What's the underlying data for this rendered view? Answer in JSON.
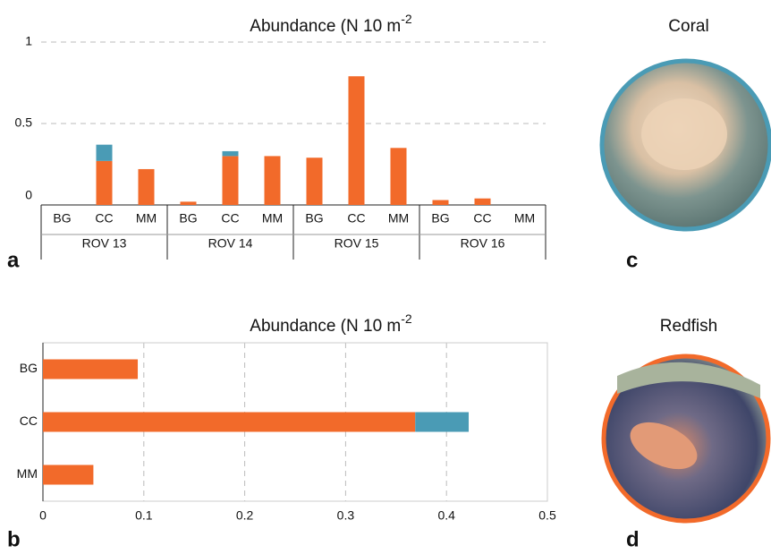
{
  "chart_data": [
    {
      "type": "bar",
      "panel": "a",
      "title": "Abundance (N 10 m",
      "title_sup": "-2",
      "categories": [
        "BG",
        "CC",
        "MM",
        "BG",
        "CC",
        "MM",
        "BG",
        "CC",
        "MM",
        "BG",
        "CC",
        "MM"
      ],
      "groups": [
        "ROV 13",
        "ROV 14",
        "ROV 15",
        "ROV 16"
      ],
      "series": [
        {
          "color": "#f26a2a",
          "values": [
            0,
            0.27,
            0.22,
            0.02,
            0.3,
            0.3,
            0.29,
            0.79,
            0.35,
            0.03,
            0.04,
            0
          ]
        },
        {
          "color": "#4a9bb5",
          "values": [
            0,
            0.1,
            0,
            0,
            0.03,
            0,
            0,
            0,
            0,
            0,
            0,
            0
          ]
        }
      ],
      "ylim": [
        0,
        1
      ],
      "yticks": [
        0,
        0.5,
        1
      ],
      "grid": true
    },
    {
      "type": "barh",
      "panel": "b",
      "title": "Abundance (N 10 m",
      "title_sup": "-2",
      "categories": [
        "BG",
        "CC",
        "MM"
      ],
      "series": [
        {
          "color": "#f26a2a",
          "values": [
            0.094,
            0.369,
            0.05
          ]
        },
        {
          "color": "#4a9bb5",
          "values": [
            0,
            0.053,
            0
          ]
        }
      ],
      "xlim": [
        0,
        0.5
      ],
      "xticks": [
        0,
        0.1,
        0.2,
        0.3,
        0.4,
        0.5
      ],
      "grid": true
    }
  ],
  "photos": [
    {
      "title": "Coral",
      "panel": "c"
    },
    {
      "title": "Redfish",
      "panel": "d"
    }
  ]
}
